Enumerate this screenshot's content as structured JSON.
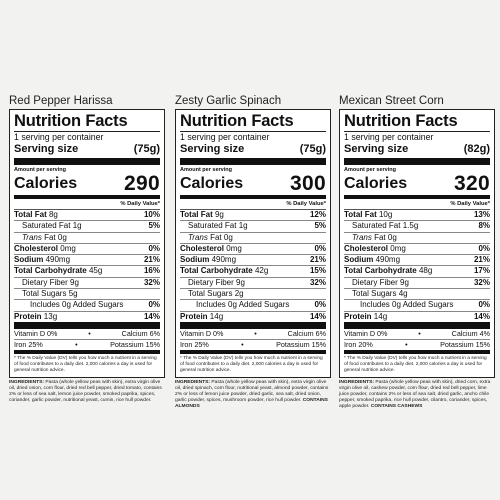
{
  "labels": [
    {
      "flavor": "Red Pepper Harissa",
      "title": "Nutrition Facts",
      "servings_per_container": "1 serving per container",
      "serving_size_label": "Serving size",
      "serving_size_value": "(75g)",
      "amount_per_serving": "Amount per serving",
      "calories_label": "Calories",
      "calories_value": "290",
      "dv_header": "% Daily Value*",
      "total_fat": {
        "label": "Total Fat",
        "amount": "8g",
        "pct": "10%"
      },
      "saturated_fat": {
        "label": "Saturated Fat",
        "amount": "1g",
        "pct": "5%"
      },
      "trans_fat": {
        "label": "Trans",
        "rest": "Fat 0g"
      },
      "cholesterol": {
        "label": "Cholesterol",
        "amount": "0mg",
        "pct": "0%"
      },
      "sodium": {
        "label": "Sodium",
        "amount": "490mg",
        "pct": "21%"
      },
      "total_carb": {
        "label": "Total Carbohydrate",
        "amount": "45g",
        "pct": "16%"
      },
      "fiber": {
        "label": "Dietary Fiber",
        "amount": "9g",
        "pct": "32%"
      },
      "total_sugars": {
        "label": "Total Sugars",
        "amount": "5g"
      },
      "added_sugars": {
        "label": "Includes 0g Added Sugars",
        "pct": "0%"
      },
      "protein": {
        "label": "Protein",
        "amount": "13g",
        "pct": "14%"
      },
      "vit_row1": {
        "left": "Vitamin D 0%",
        "dot": "•",
        "right": "Calcium 6%"
      },
      "vit_row2": {
        "left": "Iron 25%",
        "dot": "•",
        "right": "Potassium 15%"
      },
      "footnote": "* The % Daily Value (DV) tells you how much a nutrient in a serving of food contributes to a daily diet. 2,000 calories a day is used for general nutrition advice.",
      "ingredients_label": "INGREDIENTS:",
      "ingredients_text": "Pasta (whole yellow peas with skin), extra virgin olive oil, dried onion, corn flour, dried red bell pepper, dried tomato, contains 2% or less of sea salt, lemon juice powder, smoked paprika, spices, coriander, garlic powder, nutritional yeast, cumin, rice hull powder.",
      "contains": ""
    },
    {
      "flavor": "Zesty Garlic Spinach",
      "title": "Nutrition Facts",
      "servings_per_container": "1 serving per container",
      "serving_size_label": "Serving size",
      "serving_size_value": "(75g)",
      "amount_per_serving": "Amount per serving",
      "calories_label": "Calories",
      "calories_value": "300",
      "dv_header": "% Daily Value*",
      "total_fat": {
        "label": "Total Fat",
        "amount": "9g",
        "pct": "12%"
      },
      "saturated_fat": {
        "label": "Saturated Fat",
        "amount": "1g",
        "pct": "5%"
      },
      "trans_fat": {
        "label": "Trans",
        "rest": "Fat 0g"
      },
      "cholesterol": {
        "label": "Cholesterol",
        "amount": "0mg",
        "pct": "0%"
      },
      "sodium": {
        "label": "Sodium",
        "amount": "490mg",
        "pct": "21%"
      },
      "total_carb": {
        "label": "Total Carbohydrate",
        "amount": "42g",
        "pct": "15%"
      },
      "fiber": {
        "label": "Dietary Fiber",
        "amount": "9g",
        "pct": "32%"
      },
      "total_sugars": {
        "label": "Total Sugars",
        "amount": "2g"
      },
      "added_sugars": {
        "label": "Includes 0g Added Sugars",
        "pct": "0%"
      },
      "protein": {
        "label": "Protein",
        "amount": "14g",
        "pct": "14%"
      },
      "vit_row1": {
        "left": "Vitamin D 0%",
        "dot": "•",
        "right": "Calcium 6%"
      },
      "vit_row2": {
        "left": "Iron 25%",
        "dot": "•",
        "right": "Potassium 15%"
      },
      "footnote": "* The % Daily Value (DV) tells you how much a nutrient in a serving of food contributes to a daily diet. 2,000 calories a day is used for general nutrition advice.",
      "ingredients_label": "INGREDIENTS:",
      "ingredients_text": "Pasta (whole yellow peas with skin), extra virgin olive oil, dried spinach, corn flour, nutritional yeast, almond powder, contains 2% or less of lemon juice powder, dried garlic, sea salt, dried onion, garlic powder, spices, mushroom powder, rice hull powder.",
      "contains": "CONTAINS ALMONDS"
    },
    {
      "flavor": "Mexican Street Corn",
      "title": "Nutrition Facts",
      "servings_per_container": "1 serving per container",
      "serving_size_label": "Serving size",
      "serving_size_value": "(82g)",
      "amount_per_serving": "Amount per serving",
      "calories_label": "Calories",
      "calories_value": "320",
      "dv_header": "% Daily Value*",
      "total_fat": {
        "label": "Total Fat",
        "amount": "10g",
        "pct": "13%"
      },
      "saturated_fat": {
        "label": "Saturated Fat",
        "amount": "1.5g",
        "pct": "8%"
      },
      "trans_fat": {
        "label": "Trans",
        "rest": "Fat 0g"
      },
      "cholesterol": {
        "label": "Cholesterol",
        "amount": "0mg",
        "pct": "0%"
      },
      "sodium": {
        "label": "Sodium",
        "amount": "490mg",
        "pct": "21%"
      },
      "total_carb": {
        "label": "Total Carbohydrate",
        "amount": "48g",
        "pct": "17%"
      },
      "fiber": {
        "label": "Dietary Fiber",
        "amount": "9g",
        "pct": "32%"
      },
      "total_sugars": {
        "label": "Total Sugars",
        "amount": "4g"
      },
      "added_sugars": {
        "label": "Includes 0g Added Sugars",
        "pct": "0%"
      },
      "protein": {
        "label": "Protein",
        "amount": "14g",
        "pct": "14%"
      },
      "vit_row1": {
        "left": "Vitamin D 0%",
        "dot": "•",
        "right": "Calcium 4%"
      },
      "vit_row2": {
        "left": "Iron 20%",
        "dot": "•",
        "right": "Potassium 15%"
      },
      "footnote": "* The % Daily Value (DV) tells you how much a nutrient in a serving of food contributes to a daily diet. 2,000 calories a day is used for general nutrition advice.",
      "ingredients_label": "INGREDIENTS:",
      "ingredients_text": "Pasta (whole yellow peas with skin), dried corn, extra virgin olive oil, cashew powder, corn flour, dried red bell pepper, lime juice powder, contains 2% or less of sea salt, dried garlic, ancho chile pepper, smoked paprika, rice hull powder, cilantro, coriander, spices, apple powder.",
      "contains": "CONTAINS CASHEWS"
    }
  ]
}
